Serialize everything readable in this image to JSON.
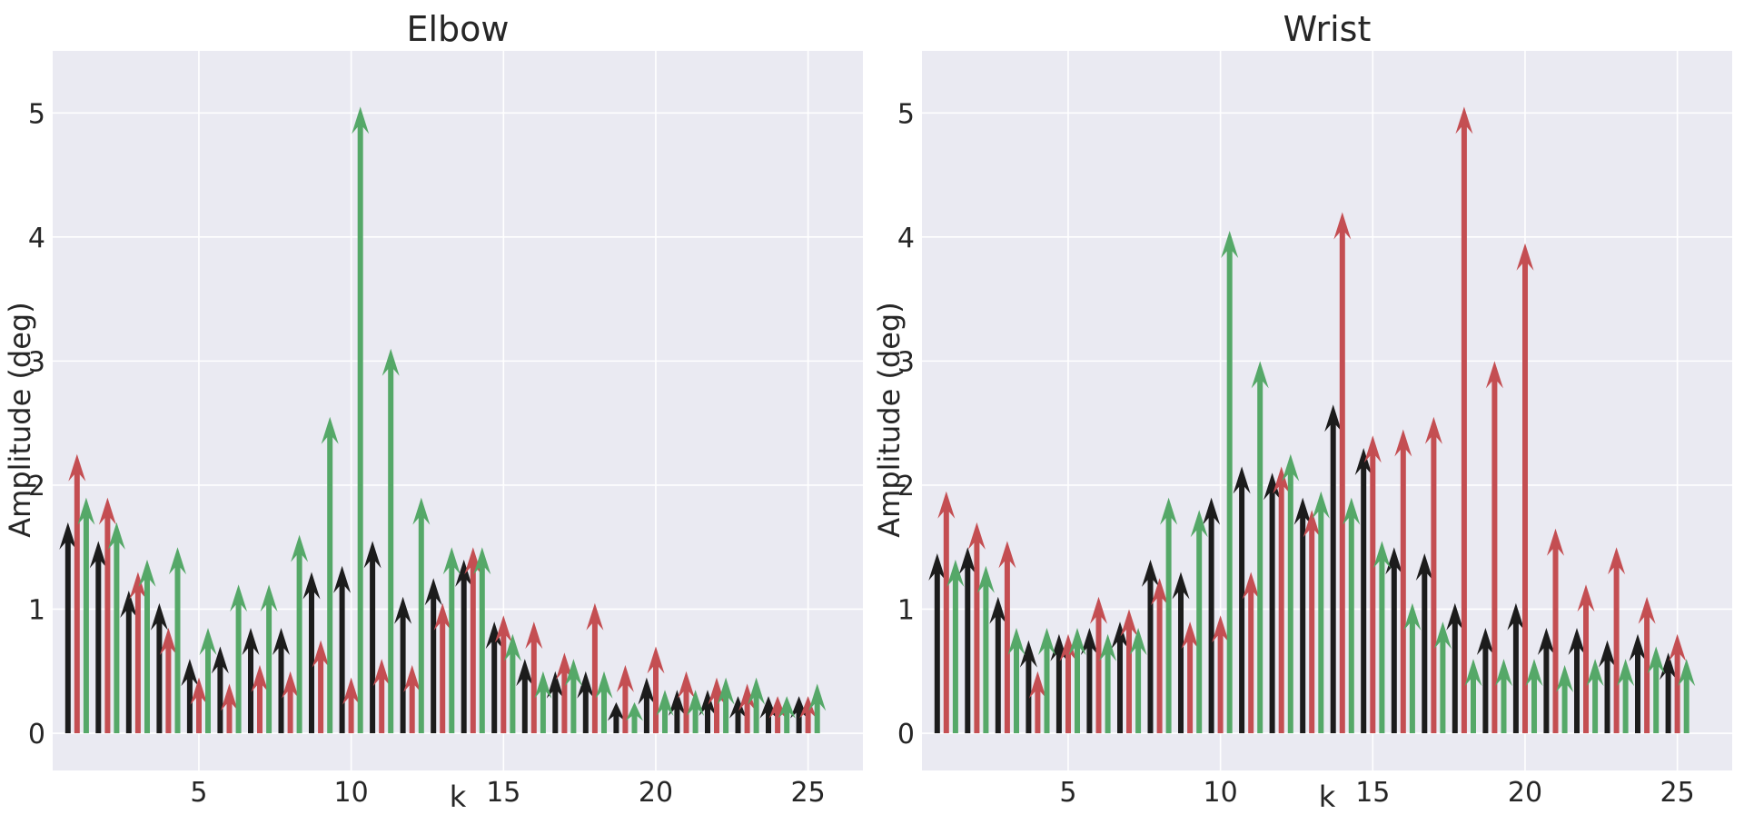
{
  "colors": {
    "background": "#eaeaf2",
    "grid": "#ffffff",
    "black": "#1c1c1c",
    "red": "#c44e52",
    "green": "#55a868"
  },
  "chart_data": [
    {
      "type": "stem-arrows",
      "title": "Elbow",
      "xlabel": "k",
      "ylabel": "Amplitude (deg)",
      "xlim": [
        0.2,
        26.8
      ],
      "ylim": [
        -0.3,
        5.5
      ],
      "xticks": [
        5,
        10,
        15,
        20,
        25
      ],
      "yticks": [
        0,
        1,
        2,
        3,
        4,
        5
      ],
      "grid": true,
      "offsets": [
        -0.3,
        0.0,
        0.3
      ],
      "series": [
        {
          "color": "black",
          "values": [
            1.7,
            1.55,
            1.15,
            1.05,
            0.6,
            0.7,
            0.85,
            0.85,
            1.3,
            1.35,
            1.55,
            1.1,
            1.25,
            1.4,
            0.9,
            0.6,
            0.5,
            0.5,
            0.25,
            0.45,
            0.35,
            0.35,
            0.3,
            0.3,
            0.3
          ]
        },
        {
          "color": "red",
          "values": [
            2.25,
            1.9,
            1.3,
            0.85,
            0.45,
            0.4,
            0.55,
            0.5,
            0.75,
            0.45,
            0.6,
            0.55,
            1.05,
            1.5,
            0.95,
            0.9,
            0.65,
            1.05,
            0.55,
            0.7,
            0.5,
            0.45,
            0.4,
            0.3,
            0.3
          ]
        },
        {
          "color": "green",
          "values": [
            1.9,
            1.7,
            1.4,
            1.5,
            0.85,
            1.2,
            1.2,
            1.6,
            2.55,
            5.05,
            3.1,
            1.9,
            1.5,
            1.5,
            0.8,
            0.5,
            0.6,
            0.5,
            0.25,
            0.35,
            0.35,
            0.45,
            0.45,
            0.3,
            0.4
          ]
        }
      ]
    },
    {
      "type": "stem-arrows",
      "title": "Wrist",
      "xlabel": "k",
      "ylabel": "Amplitude (deg)",
      "xlim": [
        0.2,
        26.8
      ],
      "ylim": [
        -0.3,
        5.5
      ],
      "xticks": [
        5,
        10,
        15,
        20,
        25
      ],
      "yticks": [
        0,
        1,
        2,
        3,
        4,
        5
      ],
      "grid": true,
      "offsets": [
        -0.3,
        0.0,
        0.3
      ],
      "series": [
        {
          "color": "black",
          "values": [
            1.45,
            1.5,
            1.1,
            0.75,
            0.8,
            0.85,
            0.9,
            1.4,
            1.3,
            1.9,
            2.15,
            2.1,
            1.9,
            2.65,
            2.3,
            1.5,
            1.45,
            1.05,
            0.85,
            1.05,
            0.85,
            0.85,
            0.75,
            0.8,
            0.65
          ]
        },
        {
          "color": "red",
          "values": [
            1.95,
            1.7,
            1.55,
            0.5,
            0.8,
            1.1,
            1.0,
            1.25,
            0.9,
            0.95,
            1.3,
            2.15,
            1.8,
            4.2,
            2.4,
            2.45,
            2.55,
            5.05,
            3.0,
            3.95,
            1.65,
            1.2,
            1.5,
            1.1,
            0.8
          ]
        },
        {
          "color": "green",
          "values": [
            1.4,
            1.35,
            0.85,
            0.85,
            0.85,
            0.8,
            0.85,
            1.9,
            1.8,
            4.05,
            3.0,
            2.25,
            1.95,
            1.9,
            1.55,
            1.05,
            0.9,
            0.6,
            0.6,
            0.6,
            0.55,
            0.6,
            0.6,
            0.7,
            0.6
          ]
        }
      ]
    }
  ]
}
